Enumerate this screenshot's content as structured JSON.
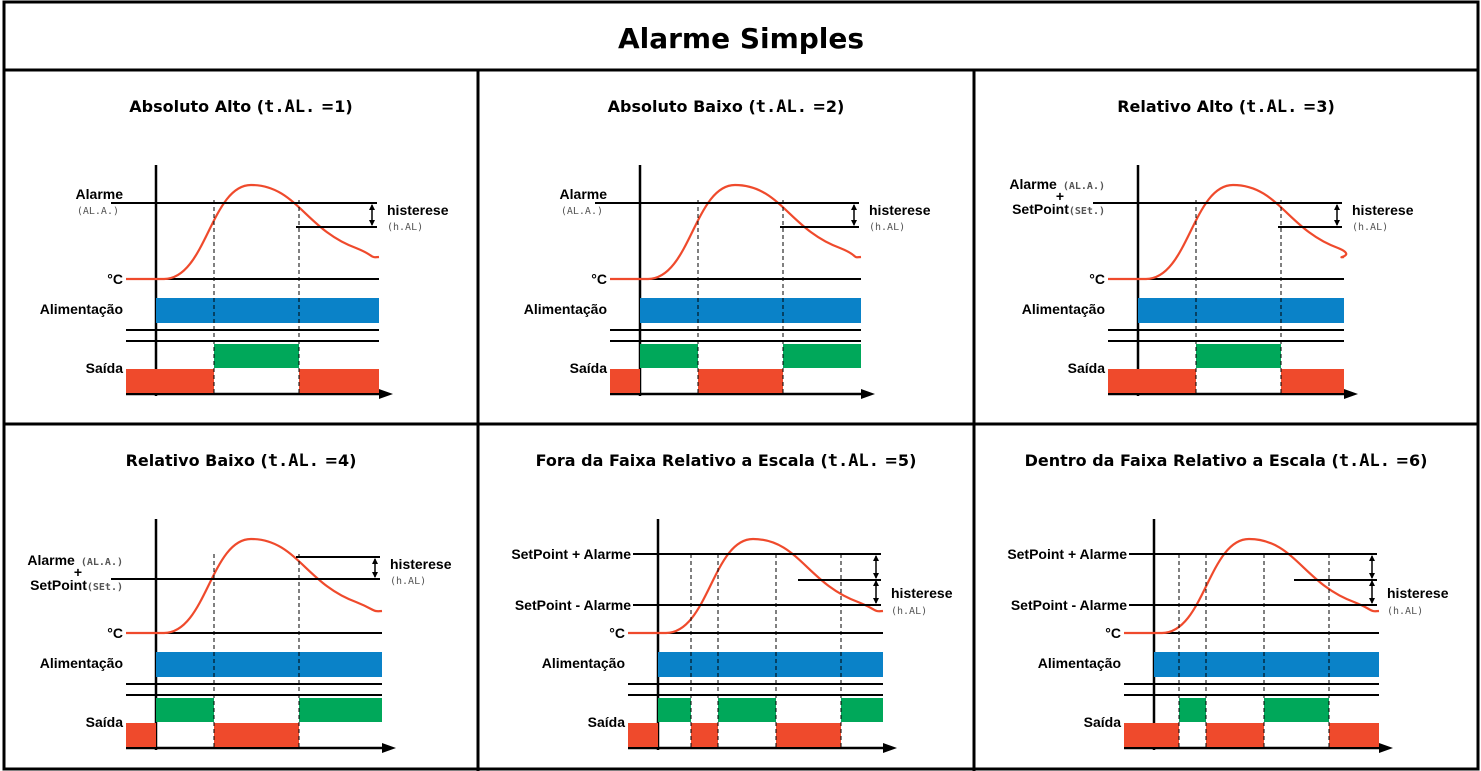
{
  "title": "Alarme Simples",
  "colors": {
    "curve": "#ef4a2c",
    "power": "#0a82c8",
    "output_on": "#00a85a",
    "output_off": "#ef4a2c",
    "line": "#000000"
  },
  "labels": {
    "alarme": "Alarme",
    "alarme_code": "(AL.A.)",
    "alarme_code_paren": "(",
    "alarme_code_close": ")",
    "plus": "+",
    "setpoint": "SetPoint",
    "setpoint_code": "(SEt.)",
    "histerese": "histerese",
    "histerese_code": "(h.AL)",
    "temp": "°C",
    "alimentacao": "Alimentação",
    "saida": "Saída",
    "sp_plus_alarme": "SetPoint + Alarme",
    "sp_minus_alarme": "SetPoint - Alarme"
  },
  "cells": [
    {
      "title": "Absoluto Alto (",
      "code": "t.AL.",
      "value": " =1)",
      "type": 1
    },
    {
      "title": "Absoluto Baixo (",
      "code": "t.AL.",
      "value": " =2)",
      "type": 2
    },
    {
      "title": "Relativo Alto (",
      "code": "t.AL.",
      "value": " =3)",
      "type": 3
    },
    {
      "title": "Relativo Baixo (",
      "code": "t.AL.",
      "value": " =4)",
      "type": 4
    },
    {
      "title": "Fora da Faixa Relativo a Escala (",
      "code": "t.AL.",
      "value": " =5)",
      "type": 5
    },
    {
      "title": "Dentro da Faixa Relativo a Escala (",
      "code": "t.AL.",
      "value": " =6)",
      "type": 6
    }
  ]
}
